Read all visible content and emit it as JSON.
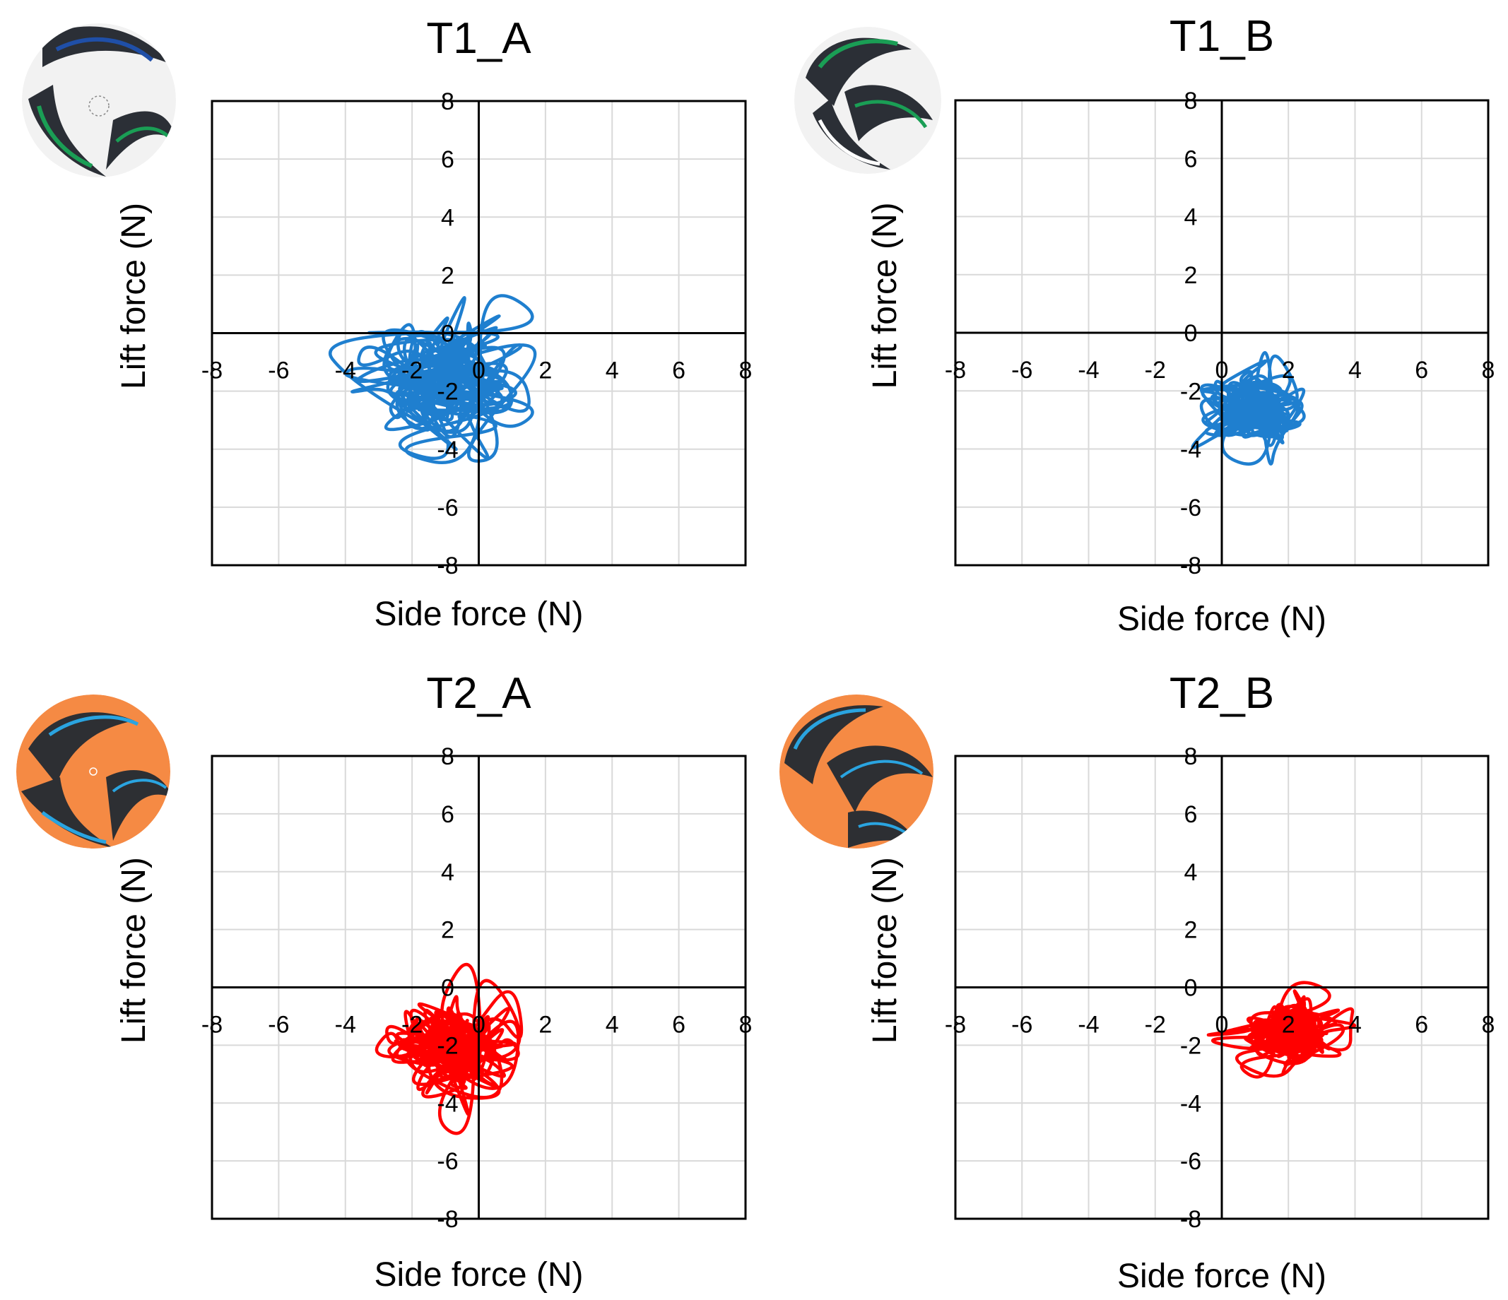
{
  "colors": {
    "t1_series": "#1f7fcf",
    "t2_series": "#ff0000",
    "t1_ball_base": "#f2f2f2",
    "t1_ball_panel": "#2b2f36",
    "t1_ball_accent_green": "#1a9e55",
    "t1_ball_accent_blue": "#1f4fa8",
    "t2_ball_base": "#f58a44",
    "t2_ball_panel": "#2d2f33",
    "t2_ball_accent_blue": "#2aa4e0"
  },
  "chart_data": [
    {
      "type": "line",
      "title": "T1_A",
      "xlabel": "Side force (N)",
      "ylabel": "Lift force (N)",
      "xlim": [
        -8,
        8
      ],
      "ylim": [
        -8,
        8
      ],
      "xticks": [
        "-8",
        "-6",
        "-4",
        "-2",
        "0",
        "2",
        "4",
        "6",
        "8"
      ],
      "yticks": [
        "-8",
        "-6",
        "-4",
        "-2",
        "0",
        "2",
        "4",
        "6",
        "8"
      ],
      "grid": true,
      "icon": "soccer-ball-t1-icon",
      "series": [
        {
          "color": "#1f7fcf",
          "cloud": {
            "center": [
              -1.0,
              -1.5
            ],
            "spread": [
              2.5,
              1.9
            ]
          },
          "excursions": [
            [
              -4.9,
              0.0
            ],
            [
              2.6,
              0.0
            ],
            [
              -0.1,
              2.1
            ],
            [
              0.2,
              -4.9
            ],
            [
              -3.2,
              -3.9
            ],
            [
              1.9,
              -3.2
            ],
            [
              -4.2,
              -2.2
            ],
            [
              1.5,
              1.2
            ]
          ]
        }
      ]
    },
    {
      "type": "line",
      "title": "T1_B",
      "xlabel": "Side force (N)",
      "ylabel": "Lift force (N)",
      "xlim": [
        -8,
        8
      ],
      "ylim": [
        -8,
        8
      ],
      "xticks": [
        "-8",
        "-6",
        "-4",
        "-2",
        "0",
        "2",
        "4",
        "6",
        "8"
      ],
      "yticks": [
        "-8",
        "-6",
        "-4",
        "-2",
        "0",
        "2",
        "4",
        "6",
        "8"
      ],
      "grid": true,
      "icon": "soccer-ball-t1-icon",
      "series": [
        {
          "color": "#1f7fcf",
          "cloud": {
            "center": [
              0.9,
              -2.6
            ],
            "spread": [
              1.3,
              1.4
            ]
          },
          "excursions": [
            [
              -1.0,
              -1.9
            ],
            [
              2.8,
              -3.1
            ],
            [
              1.3,
              0.2
            ],
            [
              1.6,
              -4.9
            ],
            [
              -0.6,
              -4.0
            ],
            [
              2.2,
              -1.1
            ]
          ]
        }
      ]
    },
    {
      "type": "line",
      "title": "T2_A",
      "xlabel": "Side force (N)",
      "ylabel": "Lift force (N)",
      "xlim": [
        -8,
        8
      ],
      "ylim": [
        -8,
        8
      ],
      "xticks": [
        "-8",
        "-6",
        "-4",
        "-2",
        "0",
        "2",
        "4",
        "6",
        "8"
      ],
      "yticks": [
        "-8",
        "-6",
        "-4",
        "-2",
        "0",
        "2",
        "4",
        "6",
        "8"
      ],
      "grid": true,
      "icon": "soccer-ball-t2-icon",
      "series": [
        {
          "color": "#ff0000",
          "cloud": {
            "center": [
              -0.9,
              -2.0
            ],
            "spread": [
              1.9,
              1.7
            ]
          },
          "excursions": [
            [
              -3.2,
              -2.1
            ],
            [
              2.0,
              -2.8
            ],
            [
              -0.2,
              1.6
            ],
            [
              -0.1,
              -5.6
            ],
            [
              -1.7,
              -4.3
            ],
            [
              1.4,
              -0.1
            ],
            [
              0.9,
              -4.5
            ],
            [
              -2.8,
              -0.8
            ]
          ]
        }
      ]
    },
    {
      "type": "line",
      "title": "T2_B",
      "xlabel": "Side force (N)",
      "ylabel": "Lift force (N)",
      "xlim": [
        -8,
        8
      ],
      "ylim": [
        -8,
        8
      ],
      "xticks": [
        "-8",
        "-6",
        "-4",
        "-2",
        "0",
        "2",
        "4",
        "6",
        "8"
      ],
      "yticks": [
        "-8",
        "-6",
        "-4",
        "-2",
        "0",
        "2",
        "4",
        "6",
        "8"
      ],
      "grid": true,
      "icon": "soccer-ball-t2-icon",
      "series": [
        {
          "color": "#ff0000",
          "cloud": {
            "center": [
              2.0,
              -1.6
            ],
            "spread": [
              1.4,
              1.0
            ]
          },
          "excursions": [
            [
              -1.0,
              -1.8
            ],
            [
              4.0,
              -0.5
            ],
            [
              1.8,
              0.6
            ],
            [
              1.5,
              -3.5
            ],
            [
              0.1,
              -2.5
            ],
            [
              3.4,
              -2.2
            ]
          ]
        }
      ]
    }
  ]
}
